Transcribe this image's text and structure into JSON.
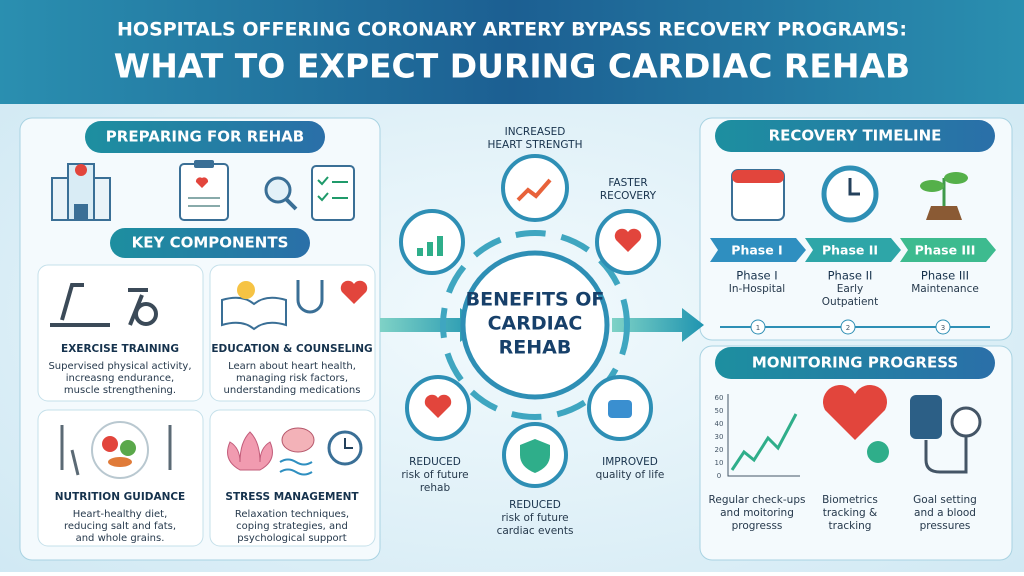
{
  "header": {
    "title": [
      "HOSPITALS OFFERING CORONARY ARTERY BYPASS RECOVERY PROGRAMS:",
      "WHAT TO EXPECT DURING CARDIAC REHAB"
    ]
  },
  "preparing": {
    "heading": "PREPARING FOR REHAB",
    "subheading": "KEY COMPONENTS",
    "components": [
      {
        "title": "EXERCISE TRAINING",
        "lines": [
          "Supervised physical activity,",
          "increasng endurance,",
          "muscle strengthening."
        ]
      },
      {
        "title": "EDUCATION & COUNSELING",
        "lines": [
          "Learn about heart health,",
          "managing risk factors,",
          "understanding medications"
        ]
      },
      {
        "title": "NUTRITION GUIDANCE",
        "lines": [
          "Heart-healthy diet,",
          "reducing salt and fats,",
          "and whole grains."
        ]
      },
      {
        "title": "STRESS MANAGEMENT",
        "lines": [
          "Relaxation techniques,",
          "coping strategies, and",
          "psychological support"
        ]
      }
    ]
  },
  "benefits": {
    "title": [
      "BENEFITS OF",
      "CARDIAC",
      "REHAB"
    ],
    "items": [
      {
        "lines": [
          "INCREASED",
          "HEART STRENGTH"
        ]
      },
      {
        "lines": [
          "FASTER",
          "RECOVERY"
        ]
      },
      {
        "lines": [
          "IMPROVED",
          "quality of life"
        ]
      },
      {
        "lines": [
          "REDUCED",
          "risk of future",
          "cardiac events"
        ]
      },
      {
        "lines": [
          "REDUCED",
          "risk of future",
          "rehab"
        ]
      }
    ]
  },
  "timeline": {
    "heading": "RECOVERY TIMELINE",
    "arrows": [
      "Phase I",
      "Phase II",
      "Phase III"
    ],
    "phases": [
      {
        "lines": [
          "Phase I",
          "In-Hospital"
        ]
      },
      {
        "lines": [
          "Phase II",
          "Early",
          "Outpatient"
        ]
      },
      {
        "lines": [
          "Phase III",
          "Maintenance"
        ]
      }
    ],
    "steps": [
      1,
      2,
      3
    ]
  },
  "monitoring": {
    "heading": "MONITORING PROGRESS",
    "chart_ticks": [
      60,
      50,
      40,
      30,
      20,
      10,
      0
    ],
    "items": [
      {
        "lines": [
          "Regular check-ups",
          "and moitoring",
          "progresss"
        ]
      },
      {
        "lines": [
          "Biometrics",
          "tracking &",
          "tracking"
        ]
      },
      {
        "lines": [
          "Goal setting",
          "and a blood",
          "pressures"
        ]
      }
    ]
  }
}
